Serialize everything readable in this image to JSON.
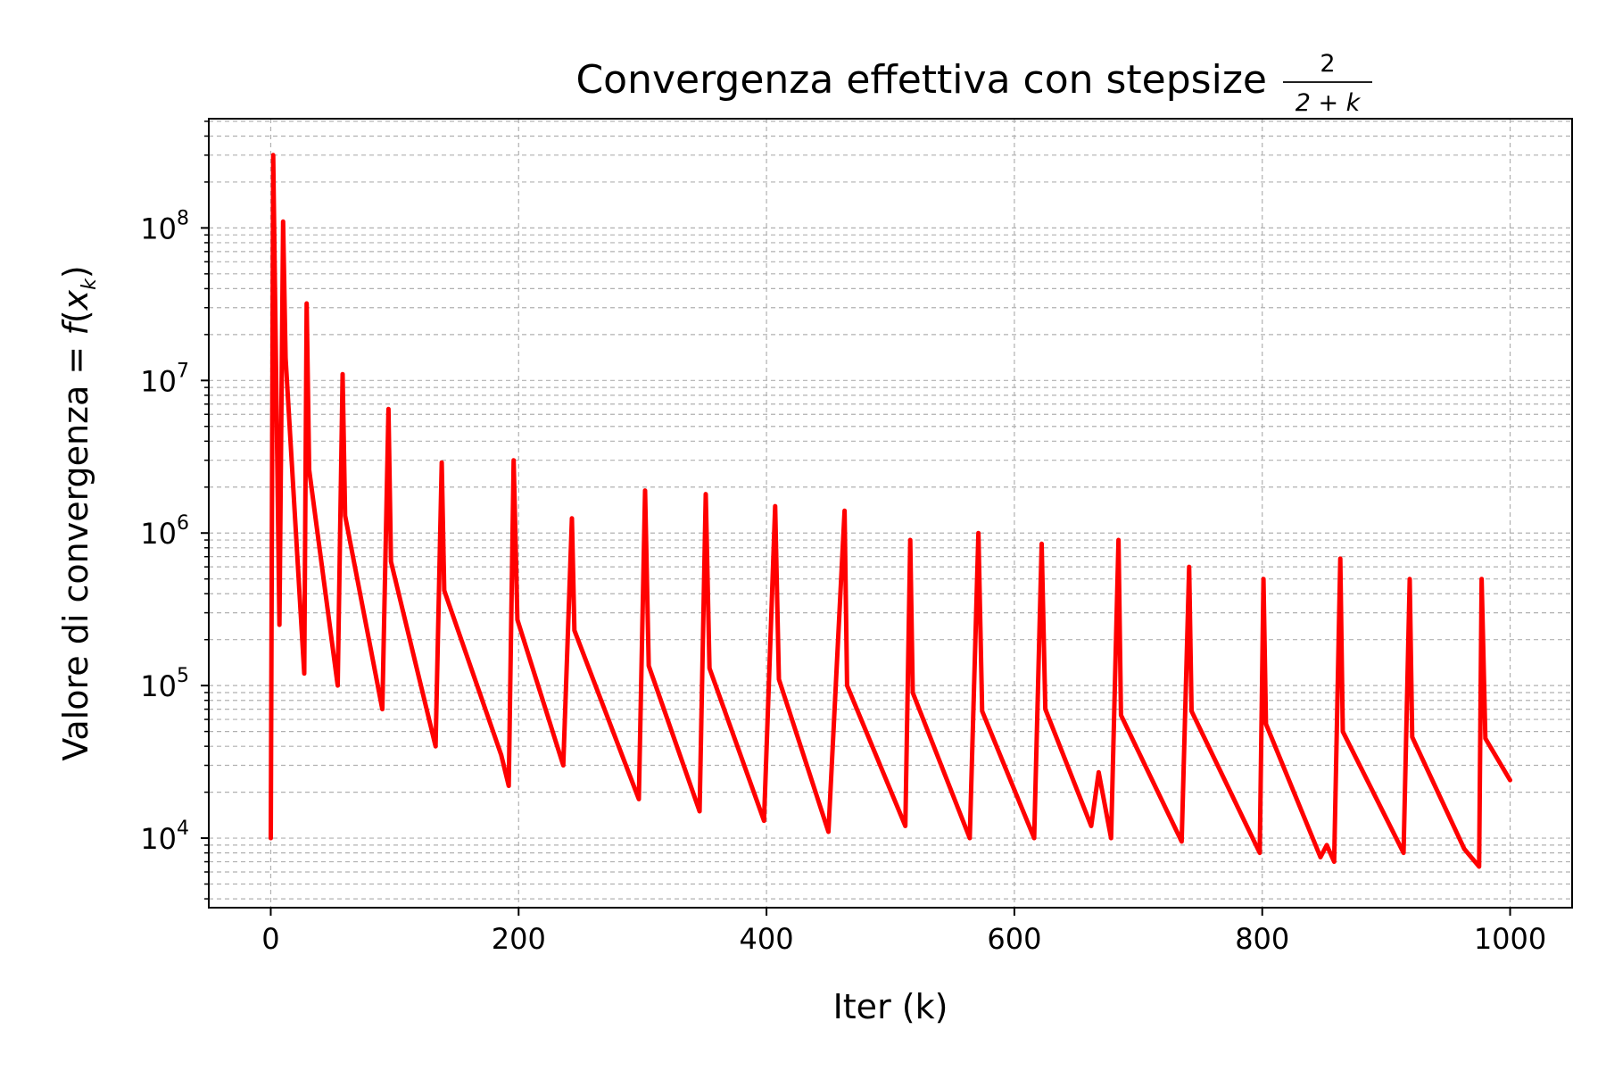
{
  "chart_data": {
    "type": "line",
    "title": {
      "text": "Convergenza effettiva con stepsize",
      "fraction_numerator": "2",
      "fraction_denominator": "2 + k"
    },
    "xlabel": "Iter (k)",
    "ylabel": {
      "text": "Valore di convergenza = ",
      "func": "f",
      "var": "x",
      "sub": "k"
    },
    "xlim": [
      -50,
      1050
    ],
    "ylim": [
      3500,
      520000000
    ],
    "yscale": "log",
    "grid": true,
    "line_color": "#ff0000",
    "grid_color": "#b0b0b0",
    "x_ticks": [
      0,
      200,
      400,
      600,
      800,
      1000
    ],
    "y_ticks": [
      {
        "value": 10000,
        "base": "10",
        "exp": "4"
      },
      {
        "value": 100000,
        "base": "10",
        "exp": "5"
      },
      {
        "value": 1000000,
        "base": "10",
        "exp": "6"
      },
      {
        "value": 10000000,
        "base": "10",
        "exp": "7"
      },
      {
        "value": 100000000,
        "base": "10",
        "exp": "8"
      }
    ],
    "series": [
      {
        "points": [
          [
            0,
            10000
          ],
          [
            2,
            300000000
          ],
          [
            7,
            250000
          ],
          [
            10,
            110000000
          ],
          [
            12,
            14000000
          ],
          [
            27,
            120000
          ],
          [
            29,
            32000000
          ],
          [
            31,
            2600000
          ],
          [
            54,
            100000
          ],
          [
            58,
            11000000
          ],
          [
            60,
            1300000
          ],
          [
            90,
            70000
          ],
          [
            95,
            6500000
          ],
          [
            97,
            650000
          ],
          [
            133,
            40000
          ],
          [
            138,
            2900000
          ],
          [
            140,
            420000
          ],
          [
            186,
            35000
          ],
          [
            192,
            22000
          ],
          [
            196,
            3000000
          ],
          [
            199,
            270000
          ],
          [
            236,
            30000
          ],
          [
            243,
            1250000
          ],
          [
            245,
            230000
          ],
          [
            297,
            18000
          ],
          [
            302,
            1900000
          ],
          [
            305,
            135000
          ],
          [
            346,
            15000
          ],
          [
            351,
            1800000
          ],
          [
            354,
            130000
          ],
          [
            398,
            13000
          ],
          [
            407,
            1500000
          ],
          [
            410,
            110000
          ],
          [
            450,
            11000
          ],
          [
            463,
            1400000
          ],
          [
            465,
            100000
          ],
          [
            512,
            12000
          ],
          [
            516,
            900000
          ],
          [
            518,
            90000
          ],
          [
            564,
            10000
          ],
          [
            571,
            1000000
          ],
          [
            574,
            68000
          ],
          [
            616,
            10000
          ],
          [
            622,
            850000
          ],
          [
            625,
            70000
          ],
          [
            662,
            12000
          ],
          [
            668,
            27000
          ],
          [
            678,
            10000
          ],
          [
            684,
            900000
          ],
          [
            686,
            64000
          ],
          [
            735,
            9500
          ],
          [
            741,
            600000
          ],
          [
            743,
            68000
          ],
          [
            798,
            8000
          ],
          [
            801,
            500000
          ],
          [
            803,
            56000
          ],
          [
            847,
            7500
          ],
          [
            852,
            9000
          ],
          [
            858,
            7000
          ],
          [
            863,
            680000
          ],
          [
            865,
            50000
          ],
          [
            914,
            8000
          ],
          [
            919,
            500000
          ],
          [
            921,
            46000
          ],
          [
            963,
            8500
          ],
          [
            975,
            6500
          ],
          [
            977,
            500000
          ],
          [
            980,
            45000
          ],
          [
            1000,
            24000
          ]
        ]
      }
    ]
  }
}
